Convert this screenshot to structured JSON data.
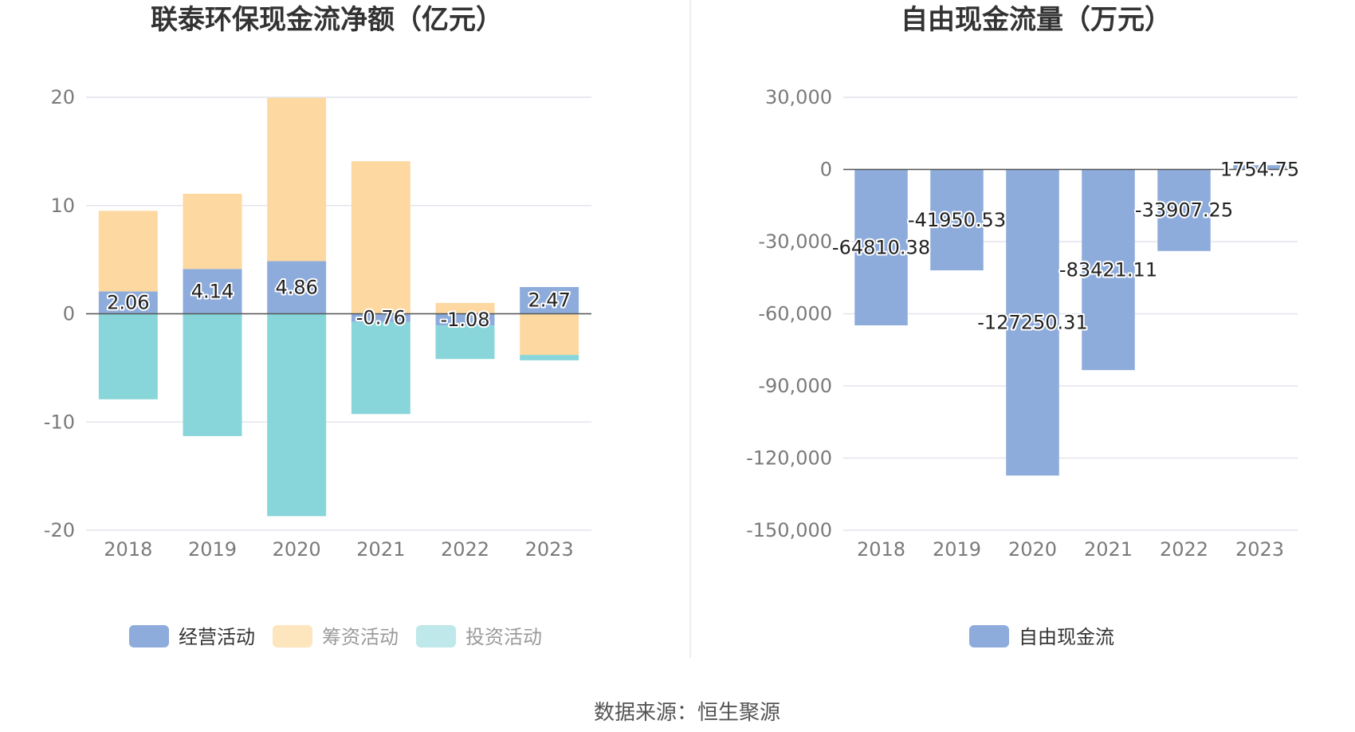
{
  "source": "数据来源：恒生聚源",
  "colors": {
    "operating": "#8eacdb",
    "financing": "#fdd9a1",
    "investing": "#88d6d9",
    "fcf": "#8eacdb",
    "legend_financing": "#fde5bd",
    "legend_investing": "#bfe8ea",
    "grid": "#e4e4ee",
    "axis": "#555555"
  },
  "chart_data": [
    {
      "type": "bar",
      "stacked": true,
      "title": "联泰环保现金流净额（亿元）",
      "categories": [
        "2018",
        "2019",
        "2020",
        "2021",
        "2022",
        "2023"
      ],
      "series": [
        {
          "name": "经营活动",
          "values": [
            2.06,
            4.14,
            4.86,
            -0.76,
            -1.08,
            2.47
          ]
        },
        {
          "name": "筹资活动",
          "values": [
            7.45,
            6.95,
            15.1,
            14.1,
            1.0,
            -3.8
          ]
        },
        {
          "name": "投资活动",
          "values": [
            -7.9,
            -11.3,
            -18.7,
            -8.5,
            -3.1,
            -0.5
          ]
        }
      ],
      "data_labels": [
        "2.06",
        "4.14",
        "4.86",
        "-0.76",
        "-1.08",
        "2.47"
      ],
      "yticks": [
        "20",
        "10",
        "0",
        "-10",
        "-20"
      ],
      "ylim": [
        -20,
        20
      ],
      "legend": "bottom"
    },
    {
      "type": "bar",
      "title": "自由现金流量（万元）",
      "categories": [
        "2018",
        "2019",
        "2020",
        "2021",
        "2022",
        "2023"
      ],
      "series": [
        {
          "name": "自由现金流",
          "values": [
            -64810.38,
            -41950.53,
            -127250.31,
            -83421.11,
            -33907.25,
            1754.75
          ]
        }
      ],
      "data_labels": [
        "-64810.38",
        "-41950.53",
        "-127250.31",
        "-83421.11",
        "-33907.25",
        "1754.75"
      ],
      "yticks": [
        "30,000",
        "0",
        "-30,000",
        "-60,000",
        "-90,000",
        "-120,000",
        "-150,000"
      ],
      "ylim": [
        -150000,
        30000
      ],
      "legend": "bottom"
    }
  ]
}
